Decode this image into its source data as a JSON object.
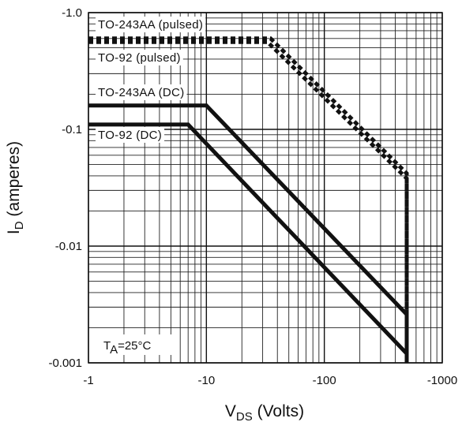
{
  "chart_data": {
    "type": "line",
    "title": "",
    "xlabel": {
      "main": "V",
      "sub": "DS",
      "suffix": " (Volts)"
    },
    "ylabel": {
      "main": "I",
      "sub": "D",
      "suffix": " (amperes)"
    },
    "x_scale": "log",
    "y_scale": "log",
    "xlim": [
      -1,
      -1000
    ],
    "ylim": [
      -0.001,
      -1.0
    ],
    "x_ticks": [
      -1,
      -10,
      -100,
      -1000
    ],
    "x_tick_labels": [
      "-1",
      "-10",
      "-100",
      "-1000"
    ],
    "y_ticks": [
      -0.001,
      -0.01,
      -0.1,
      -1.0
    ],
    "y_tick_labels": [
      "-0.001",
      "-0.01",
      "-0.1",
      "-1.0"
    ],
    "grid": true,
    "annotation": {
      "main": "T",
      "sub": "A",
      "suffix": "=25°C"
    },
    "series": [
      {
        "name": "TO-243AA (pulsed)",
        "style": "dashed",
        "x": [
          -1,
          -35,
          -500,
          -500
        ],
        "y": [
          -0.6,
          -0.6,
          -0.042,
          -0.001
        ]
      },
      {
        "name": "TO-92 (pulsed)",
        "style": "dashed",
        "x": [
          -1,
          -33,
          -500,
          -500
        ],
        "y": [
          -0.56,
          -0.56,
          -0.038,
          -0.001
        ]
      },
      {
        "name": "TO-243AA (DC)",
        "style": "solid",
        "x": [
          -1,
          -10,
          -500,
          -500
        ],
        "y": [
          -0.16,
          -0.16,
          -0.0026,
          -0.001
        ]
      },
      {
        "name": "TO-92 (DC)",
        "style": "solid",
        "x": [
          -1,
          -7,
          -500,
          -500
        ],
        "y": [
          -0.11,
          -0.11,
          -0.0012,
          -0.001
        ]
      }
    ]
  }
}
